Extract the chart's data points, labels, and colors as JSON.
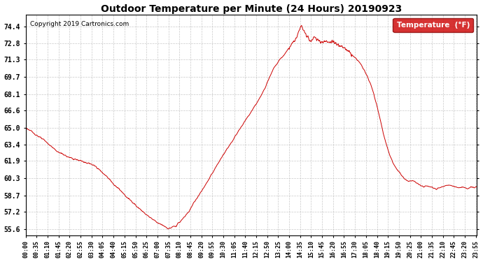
{
  "title": "Outdoor Temperature per Minute (24 Hours) 20190923",
  "copyright": "Copyright 2019 Cartronics.com",
  "legend_label": "Temperature  (°F)",
  "line_color": "#cc0000",
  "legend_bg": "#cc0000",
  "legend_text_color": "#ffffff",
  "background_color": "#ffffff",
  "grid_color": "#bbbbbb",
  "yticks": [
    55.6,
    57.2,
    58.7,
    60.3,
    61.9,
    63.4,
    65.0,
    66.6,
    68.1,
    69.7,
    71.3,
    72.8,
    74.4
  ],
  "ylim": [
    55.0,
    75.5
  ],
  "total_minutes": 1440,
  "xtick_interval": 35,
  "xtick_labels": [
    "00:00",
    "00:35",
    "01:10",
    "01:45",
    "02:20",
    "02:55",
    "03:30",
    "04:05",
    "04:40",
    "05:15",
    "05:50",
    "06:25",
    "07:00",
    "07:35",
    "08:10",
    "08:45",
    "09:20",
    "09:55",
    "10:30",
    "11:05",
    "11:40",
    "12:15",
    "12:50",
    "13:25",
    "14:00",
    "14:35",
    "15:10",
    "15:45",
    "16:20",
    "16:55",
    "17:30",
    "18:05",
    "18:40",
    "19:15",
    "19:50",
    "20:25",
    "21:00",
    "21:35",
    "22:10",
    "22:45",
    "23:20",
    "23:55"
  ],
  "curve_keypoints": [
    [
      0,
      65.0
    ],
    [
      20,
      64.6
    ],
    [
      60,
      63.8
    ],
    [
      100,
      62.8
    ],
    [
      140,
      62.2
    ],
    [
      180,
      61.9
    ],
    [
      220,
      61.5
    ],
    [
      260,
      60.4
    ],
    [
      300,
      59.2
    ],
    [
      350,
      57.8
    ],
    [
      390,
      56.8
    ],
    [
      420,
      56.2
    ],
    [
      450,
      55.7
    ],
    [
      455,
      55.6
    ],
    [
      460,
      55.65
    ],
    [
      480,
      55.9
    ],
    [
      500,
      56.5
    ],
    [
      520,
      57.2
    ],
    [
      540,
      58.2
    ],
    [
      570,
      59.5
    ],
    [
      600,
      61.0
    ],
    [
      630,
      62.5
    ],
    [
      660,
      63.8
    ],
    [
      690,
      65.2
    ],
    [
      720,
      66.5
    ],
    [
      750,
      67.9
    ],
    [
      770,
      69.2
    ],
    [
      790,
      70.5
    ],
    [
      810,
      71.3
    ],
    [
      825,
      71.8
    ],
    [
      835,
      72.2
    ],
    [
      845,
      72.6
    ],
    [
      855,
      73.0
    ],
    [
      865,
      73.4
    ],
    [
      870,
      73.8
    ],
    [
      875,
      74.2
    ],
    [
      878,
      74.35
    ],
    [
      880,
      74.4
    ],
    [
      882,
      74.3
    ],
    [
      885,
      74.1
    ],
    [
      890,
      73.8
    ],
    [
      895,
      73.5
    ],
    [
      900,
      73.3
    ],
    [
      910,
      73.1
    ],
    [
      920,
      73.4
    ],
    [
      930,
      73.2
    ],
    [
      940,
      73.0
    ],
    [
      950,
      72.9
    ],
    [
      960,
      73.1
    ],
    [
      970,
      72.9
    ],
    [
      980,
      73.0
    ],
    [
      990,
      72.8
    ],
    [
      1000,
      72.6
    ],
    [
      1010,
      72.5
    ],
    [
      1020,
      72.3
    ],
    [
      1030,
      72.1
    ],
    [
      1040,
      71.8
    ],
    [
      1050,
      71.5
    ],
    [
      1060,
      71.2
    ],
    [
      1070,
      70.8
    ],
    [
      1080,
      70.3
    ],
    [
      1090,
      69.7
    ],
    [
      1100,
      69.0
    ],
    [
      1110,
      68.1
    ],
    [
      1120,
      67.0
    ],
    [
      1130,
      65.8
    ],
    [
      1140,
      64.5
    ],
    [
      1150,
      63.4
    ],
    [
      1160,
      62.5
    ],
    [
      1170,
      61.8
    ],
    [
      1180,
      61.3
    ],
    [
      1190,
      60.9
    ],
    [
      1200,
      60.5
    ],
    [
      1210,
      60.2
    ],
    [
      1220,
      60.0
    ],
    [
      1230,
      60.1
    ],
    [
      1240,
      60.0
    ],
    [
      1250,
      59.8
    ],
    [
      1260,
      59.6
    ],
    [
      1270,
      59.5
    ],
    [
      1280,
      59.6
    ],
    [
      1290,
      59.5
    ],
    [
      1300,
      59.4
    ],
    [
      1310,
      59.3
    ],
    [
      1320,
      59.4
    ],
    [
      1330,
      59.5
    ],
    [
      1340,
      59.6
    ],
    [
      1350,
      59.7
    ],
    [
      1360,
      59.6
    ],
    [
      1370,
      59.5
    ],
    [
      1380,
      59.4
    ],
    [
      1390,
      59.5
    ],
    [
      1400,
      59.4
    ],
    [
      1410,
      59.3
    ],
    [
      1420,
      59.5
    ],
    [
      1430,
      59.4
    ],
    [
      1439,
      59.5
    ]
  ]
}
